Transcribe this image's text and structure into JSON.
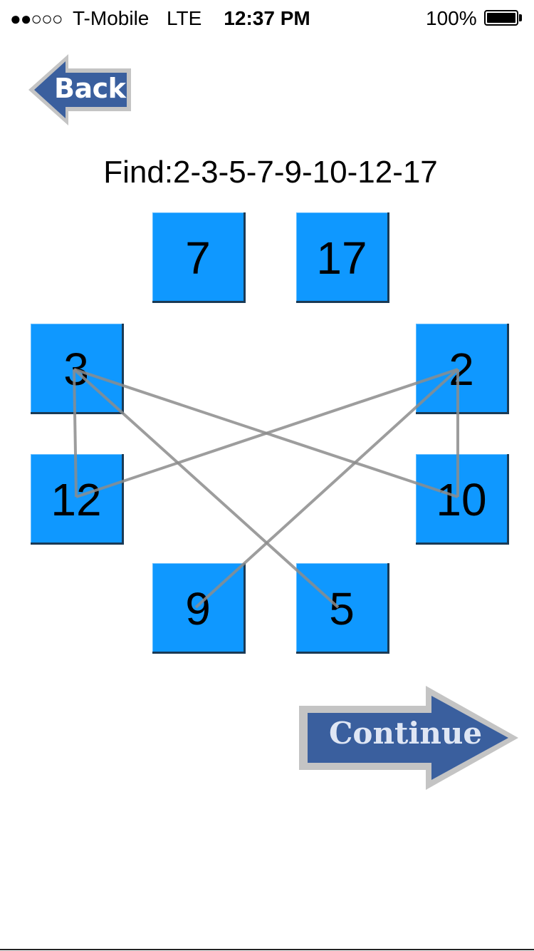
{
  "status": {
    "signal": "●●○○○",
    "carrier": "T-Mobile",
    "network": "LTE",
    "time": "12:37 PM",
    "battery": "100%"
  },
  "back_button": {
    "label": "Back"
  },
  "continue_button": {
    "label": "Continue"
  },
  "find": {
    "text": "Find:2-3-5-7-9-10-12-17"
  },
  "tiles": [
    {
      "id": "7",
      "label": "7"
    },
    {
      "id": "17",
      "label": "17"
    },
    {
      "id": "3",
      "label": "3"
    },
    {
      "id": "2",
      "label": "2"
    },
    {
      "id": "12",
      "label": "12"
    },
    {
      "id": "10",
      "label": "10"
    },
    {
      "id": "9",
      "label": "9"
    },
    {
      "id": "5",
      "label": "5"
    }
  ],
  "connections": [
    [
      "3",
      "12"
    ],
    [
      "3",
      "10"
    ],
    [
      "3",
      "5"
    ],
    [
      "2",
      "12"
    ],
    [
      "2",
      "10"
    ],
    [
      "2",
      "9"
    ]
  ],
  "colors": {
    "tile": "#0f98ff",
    "arrow": "#3a5f9e",
    "arrow_border": "#c4c4c4",
    "line": "#8c8c8c"
  }
}
